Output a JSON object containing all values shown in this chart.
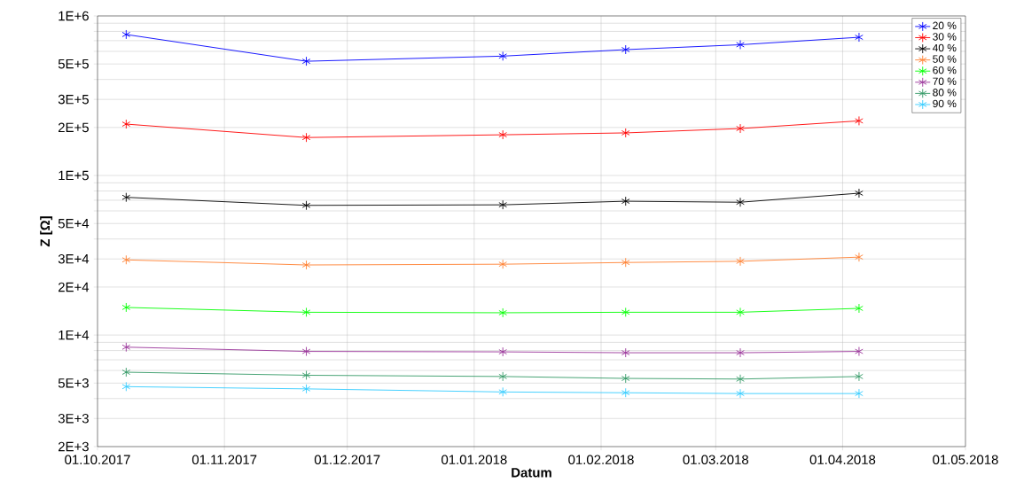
{
  "chart_data": {
    "type": "line",
    "xlabel": "Datum",
    "ylabel": "Z [Ω]",
    "log": "y",
    "grid": true,
    "legend": "top right",
    "marker": "cross",
    "line_style": "solid",
    "x": [
      "2017-10-08",
      "2017-11-21",
      "2018-01-08",
      "2018-02-07",
      "2018-03-07",
      "2018-04-05"
    ],
    "xlim": [
      "2017-10-01",
      "2018-05-01"
    ],
    "xticks": [
      {
        "value": "2017-10-01",
        "label": "01.10.2017"
      },
      {
        "value": "2017-11-01",
        "label": "01.11.2017"
      },
      {
        "value": "2017-12-01",
        "label": "01.12.2017"
      },
      {
        "value": "2018-01-01",
        "label": "01.01.2018"
      },
      {
        "value": "2018-02-01",
        "label": "01.02.2018"
      },
      {
        "value": "2018-03-01",
        "label": "01.03.2018"
      },
      {
        "value": "2018-04-01",
        "label": "01.04.2018"
      },
      {
        "value": "2018-05-01",
        "label": "01.05.2018"
      }
    ],
    "ylim": [
      2000,
      1000000
    ],
    "yticks": [
      {
        "value": 2000,
        "label": "2E+3"
      },
      {
        "value": 3000,
        "label": "3E+3"
      },
      {
        "value": 4000,
        "label": null
      },
      {
        "value": 5000,
        "label": "5E+3"
      },
      {
        "value": 6000,
        "label": null
      },
      {
        "value": 7000,
        "label": null
      },
      {
        "value": 8000,
        "label": null
      },
      {
        "value": 9000,
        "label": null
      },
      {
        "value": 10000,
        "label": "1E+4"
      },
      {
        "value": 20000,
        "label": "2E+4"
      },
      {
        "value": 30000,
        "label": "3E+4"
      },
      {
        "value": 40000,
        "label": null
      },
      {
        "value": 50000,
        "label": "5E+4"
      },
      {
        "value": 60000,
        "label": null
      },
      {
        "value": 70000,
        "label": null
      },
      {
        "value": 80000,
        "label": null
      },
      {
        "value": 90000,
        "label": null
      },
      {
        "value": 100000,
        "label": "1E+5"
      },
      {
        "value": 200000,
        "label": "2E+5"
      },
      {
        "value": 300000,
        "label": "3E+5"
      },
      {
        "value": 400000,
        "label": null
      },
      {
        "value": 500000,
        "label": "5E+5"
      },
      {
        "value": 600000,
        "label": null
      },
      {
        "value": 700000,
        "label": null
      },
      {
        "value": 800000,
        "label": null
      },
      {
        "value": 900000,
        "label": null
      },
      {
        "value": 1000000,
        "label": "1E+6"
      }
    ],
    "series": [
      {
        "name": "20 %",
        "color": "#0000ff",
        "values": [
          765000,
          520000,
          560000,
          615000,
          660000,
          735000
        ]
      },
      {
        "name": "30 %",
        "color": "#ff0000",
        "values": [
          210000,
          173000,
          180000,
          185000,
          197000,
          220000
        ]
      },
      {
        "name": "40 %",
        "color": "#000000",
        "values": [
          73000,
          65000,
          65500,
          69000,
          68000,
          77500
        ]
      },
      {
        "name": "50 %",
        "color": "#ff8030",
        "values": [
          29600,
          27500,
          27800,
          28500,
          29000,
          30800
        ]
      },
      {
        "name": "60 %",
        "color": "#00ff00",
        "values": [
          14900,
          13900,
          13800,
          13900,
          13900,
          14700
        ]
      },
      {
        "name": "70 %",
        "color": "#993399",
        "values": [
          8400,
          7900,
          7850,
          7750,
          7750,
          7900
        ]
      },
      {
        "name": "80 %",
        "color": "#339966",
        "values": [
          5850,
          5600,
          5500,
          5350,
          5300,
          5500
        ]
      },
      {
        "name": "90 %",
        "color": "#33ccff",
        "values": [
          4750,
          4600,
          4400,
          4350,
          4300,
          4300
        ]
      }
    ]
  }
}
